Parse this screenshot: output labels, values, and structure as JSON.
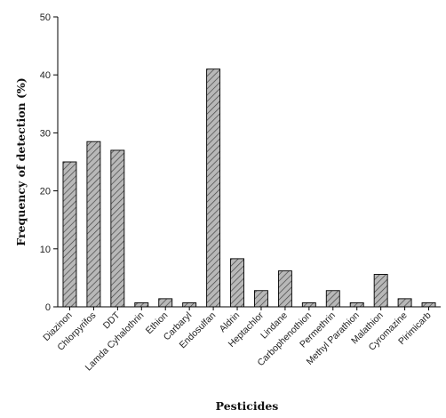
{
  "chart_data": {
    "type": "bar",
    "title": "",
    "xlabel": "Pesticides",
    "ylabel": "Frequency of detection (%)",
    "ylim": [
      0,
      50
    ],
    "yticks": [
      0,
      10,
      20,
      30,
      40,
      50
    ],
    "grid": false,
    "legend": "none",
    "bar_fill": "hatched gray",
    "colors": {
      "bar": "#b8b8b8",
      "hatch": "#444444",
      "axis": "#000000"
    },
    "categories": [
      "Diazinon",
      "Chlorpyrifos",
      "DDT",
      "Lamda Cyhalothrin",
      "Ethion",
      "Carbaryl",
      "Endosulfan",
      "Aldrin",
      "Heptachlor",
      "Lindane",
      "Carbophenothion",
      "Permethrin",
      "Methyl Parathion",
      "Malathion",
      "Cyromazine",
      "Pirimicarb"
    ],
    "values": [
      25,
      28.5,
      27,
      0.7,
      1.4,
      0.7,
      41,
      8.3,
      2.8,
      6.2,
      0.7,
      2.8,
      0.7,
      5.6,
      1.4,
      0.7
    ]
  }
}
